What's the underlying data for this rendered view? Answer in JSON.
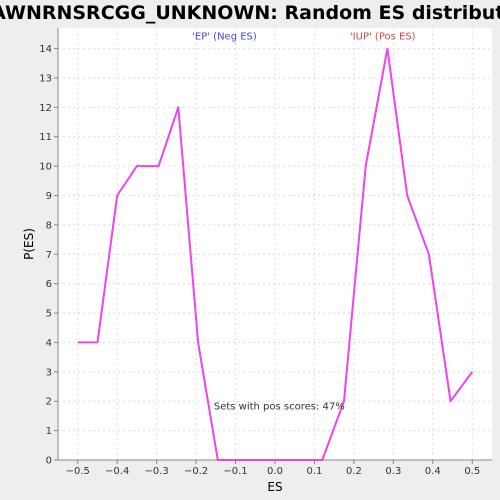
{
  "chart_data": {
    "type": "line",
    "title": "ACAWNRNSRCGG_UNKNOWN: Random ES distribution",
    "xlabel": "ES",
    "ylabel": "P(ES)",
    "xlim": [
      -0.55,
      0.55
    ],
    "ylim": [
      0,
      14.7
    ],
    "xticks": [
      -0.5,
      -0.4,
      -0.3,
      -0.2,
      -0.1,
      0.0,
      0.1,
      0.2,
      0.3,
      0.4,
      0.5
    ],
    "xtick_labels": [
      "−0.5",
      "−0.4",
      "−0.3",
      "−0.2",
      "−0.1",
      "0.0",
      "0.1",
      "0.2",
      "0.3",
      "0.4",
      "0.5"
    ],
    "yticks": [
      0,
      1,
      2,
      3,
      4,
      5,
      6,
      7,
      8,
      9,
      10,
      11,
      12,
      13,
      14
    ],
    "ytick_labels": [
      "0",
      "1",
      "2",
      "3",
      "4",
      "5",
      "6",
      "7",
      "8",
      "9",
      "10",
      "11",
      "12",
      "13",
      "14"
    ],
    "grid": true,
    "series": [
      {
        "color": "#ee44ee",
        "x": [
          -0.5,
          -0.45,
          -0.4,
          -0.35,
          -0.295,
          -0.245,
          -0.195,
          -0.145,
          -0.09,
          -0.04,
          0.015,
          0.065,
          0.12,
          0.175,
          0.23,
          0.285,
          0.335,
          0.39,
          0.445,
          0.5
        ],
        "y": [
          4,
          4,
          9,
          10,
          10,
          12,
          4,
          0,
          0,
          0,
          0,
          0,
          0,
          2,
          10,
          14,
          9,
          7,
          2,
          3
        ]
      }
    ],
    "annotations": [
      {
        "text": "'EP' (Neg ES)",
        "x": -0.21,
        "y": 14.45,
        "color": "#4444dd"
      },
      {
        "text": "'IUP' (Pos ES)",
        "x": 0.19,
        "y": 14.45,
        "color": "#dd4444"
      },
      {
        "text": "Sets with pos scores: 47%",
        "x": -0.155,
        "y": 1.85,
        "color": "#333333"
      }
    ]
  }
}
